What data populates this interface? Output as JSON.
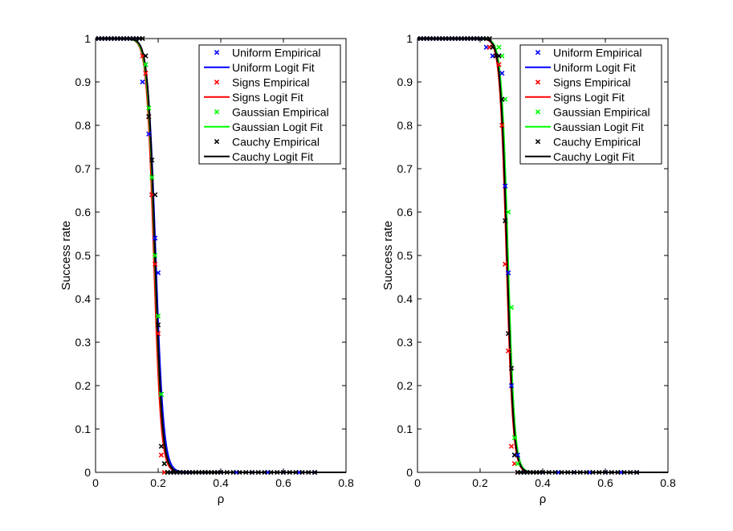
{
  "chart_data": [
    {
      "type": "line",
      "xlabel": "ρ",
      "ylabel": "Success rate",
      "xlim": [
        0,
        0.8
      ],
      "ylim": [
        0,
        1
      ],
      "xticks": [
        "0",
        "0.2",
        "0.4",
        "0.6",
        "0.8"
      ],
      "yticks": [
        "0",
        "0.1",
        "0.2",
        "0.3",
        "0.4",
        "0.5",
        "0.6",
        "0.7",
        "0.8",
        "0.9",
        "1"
      ],
      "legend_position": "top-right",
      "series": [
        {
          "name": "Uniform Empirical",
          "kind": "scatter",
          "marker": "x",
          "color": "#0000ff",
          "x": [
            0,
            0.01,
            0.02,
            0.03,
            0.04,
            0.05,
            0.06,
            0.07,
            0.08,
            0.09,
            0.1,
            0.11,
            0.12,
            0.13,
            0.14,
            0.15,
            0.16,
            0.17,
            0.18,
            0.19,
            0.2,
            0.21,
            0.22,
            0.23,
            0.24,
            0.25,
            0.26,
            0.27,
            0.28,
            0.29,
            0.3,
            0.35,
            0.4,
            0.45,
            0.5,
            0.55,
            0.6,
            0.65,
            0.7
          ],
          "y": [
            1,
            1,
            1,
            1,
            1,
            1,
            1,
            1,
            1,
            1,
            1,
            1,
            1,
            1,
            1,
            0.9,
            0.94,
            0.78,
            0.64,
            0.54,
            0.46,
            0.18,
            0.02,
            0,
            0,
            0,
            0,
            0,
            0,
            0,
            0,
            0,
            0,
            0,
            0,
            0,
            0,
            0,
            0
          ]
        },
        {
          "name": "Uniform Logit Fit",
          "kind": "line",
          "color": "#0000ff",
          "center": 0.192,
          "slope": 0.0125
        },
        {
          "name": "Signs Empirical",
          "kind": "scatter",
          "marker": "x",
          "color": "#ff0000",
          "x": [
            0.15,
            0.16,
            0.17,
            0.18,
            0.19,
            0.2,
            0.21,
            0.22
          ],
          "y": [
            0.96,
            0.92,
            0.82,
            0.64,
            0.48,
            0.32,
            0.04,
            0
          ]
        },
        {
          "name": "Signs Logit Fit",
          "kind": "line",
          "color": "#ff0000",
          "center": 0.186,
          "slope": 0.0115
        },
        {
          "name": "Gaussian Empirical",
          "kind": "scatter",
          "marker": "x",
          "color": "#00ff00",
          "x": [
            0.16,
            0.17,
            0.18,
            0.19,
            0.2,
            0.21,
            0.22,
            0.23
          ],
          "y": [
            0.94,
            0.84,
            0.68,
            0.5,
            0.36,
            0.18,
            0.02,
            0
          ]
        },
        {
          "name": "Gaussian Logit Fit",
          "kind": "line",
          "color": "#00ff00",
          "center": 0.189,
          "slope": 0.0118
        },
        {
          "name": "Cauchy Empirical",
          "kind": "scatter",
          "marker": "x",
          "color": "#000000",
          "x": [
            0,
            0.01,
            0.02,
            0.03,
            0.04,
            0.05,
            0.06,
            0.07,
            0.08,
            0.09,
            0.1,
            0.11,
            0.12,
            0.13,
            0.14,
            0.15,
            0.16,
            0.17,
            0.18,
            0.19,
            0.2,
            0.21,
            0.22,
            0.23,
            0.24,
            0.25,
            0.26,
            0.27,
            0.28,
            0.29,
            0.3,
            0.31,
            0.32,
            0.33,
            0.34,
            0.35,
            0.36,
            0.37,
            0.38,
            0.39,
            0.4,
            0.42,
            0.44,
            0.46,
            0.48,
            0.5,
            0.52,
            0.54,
            0.56,
            0.58,
            0.6,
            0.62,
            0.64,
            0.66,
            0.68,
            0.7
          ],
          "y": [
            1,
            1,
            1,
            1,
            1,
            1,
            1,
            1,
            1,
            1,
            1,
            1,
            1,
            1,
            1,
            1,
            0.96,
            0.82,
            0.72,
            0.64,
            0.34,
            0.06,
            0.02,
            0,
            0,
            0,
            0,
            0,
            0,
            0,
            0,
            0,
            0,
            0,
            0,
            0,
            0,
            0,
            0,
            0,
            0,
            0,
            0,
            0,
            0,
            0,
            0,
            0,
            0,
            0,
            0,
            0,
            0,
            0,
            0,
            0
          ]
        },
        {
          "name": "Cauchy Logit Fit",
          "kind": "line",
          "color": "#000000",
          "center": 0.19,
          "slope": 0.0115
        }
      ]
    },
    {
      "type": "line",
      "xlabel": "ρ",
      "ylabel": "Success rate",
      "xlim": [
        0,
        0.8
      ],
      "ylim": [
        0,
        1
      ],
      "xticks": [
        "0",
        "0.2",
        "0.4",
        "0.6",
        "0.8"
      ],
      "yticks": [
        "0",
        "0.1",
        "0.2",
        "0.3",
        "0.4",
        "0.5",
        "0.6",
        "0.7",
        "0.8",
        "0.9",
        "1"
      ],
      "legend_position": "top-right",
      "series": [
        {
          "name": "Uniform Empirical",
          "kind": "scatter",
          "marker": "x",
          "color": "#0000ff",
          "x": [
            0,
            0.01,
            0.02,
            0.03,
            0.04,
            0.05,
            0.06,
            0.07,
            0.08,
            0.09,
            0.1,
            0.11,
            0.12,
            0.13,
            0.14,
            0.15,
            0.16,
            0.17,
            0.18,
            0.19,
            0.2,
            0.21,
            0.22,
            0.23,
            0.24,
            0.25,
            0.26,
            0.27,
            0.28,
            0.29,
            0.3,
            0.31,
            0.32,
            0.33,
            0.34,
            0.35,
            0.4,
            0.45,
            0.5,
            0.55,
            0.6,
            0.65,
            0.7
          ],
          "y": [
            1,
            1,
            1,
            1,
            1,
            1,
            1,
            1,
            1,
            1,
            1,
            1,
            1,
            1,
            1,
            1,
            1,
            1,
            1,
            1,
            1,
            1,
            0.98,
            0.98,
            0.96,
            0.96,
            0.96,
            0.92,
            0.66,
            0.46,
            0.2,
            0.04,
            0.04,
            0,
            0,
            0,
            0,
            0,
            0,
            0,
            0,
            0,
            0
          ]
        },
        {
          "name": "Uniform Logit Fit",
          "kind": "line",
          "color": "#0000ff",
          "center": 0.288,
          "slope": 0.0105
        },
        {
          "name": "Signs Empirical",
          "kind": "scatter",
          "marker": "x",
          "color": "#ff0000",
          "x": [
            0.23,
            0.24,
            0.25,
            0.26,
            0.27,
            0.28,
            0.29,
            0.3,
            0.31,
            0.32
          ],
          "y": [
            0.98,
            0.98,
            0.96,
            0.94,
            0.8,
            0.48,
            0.28,
            0.06,
            0.02,
            0
          ]
        },
        {
          "name": "Signs Logit Fit",
          "kind": "line",
          "color": "#ff0000",
          "center": 0.284,
          "slope": 0.0105
        },
        {
          "name": "Gaussian Empirical",
          "kind": "scatter",
          "marker": "x",
          "color": "#00ff00",
          "x": [
            0.26,
            0.27,
            0.28,
            0.29,
            0.3,
            0.31,
            0.32,
            0.33
          ],
          "y": [
            0.98,
            0.96,
            0.86,
            0.6,
            0.38,
            0.08,
            0.02,
            0
          ]
        },
        {
          "name": "Gaussian Logit Fit",
          "kind": "line",
          "color": "#00ff00",
          "center": 0.289,
          "slope": 0.0105
        },
        {
          "name": "Cauchy Empirical",
          "kind": "scatter",
          "marker": "x",
          "color": "#000000",
          "x": [
            0,
            0.01,
            0.02,
            0.03,
            0.04,
            0.05,
            0.06,
            0.07,
            0.08,
            0.09,
            0.1,
            0.11,
            0.12,
            0.13,
            0.14,
            0.15,
            0.16,
            0.17,
            0.18,
            0.19,
            0.2,
            0.21,
            0.22,
            0.23,
            0.24,
            0.25,
            0.26,
            0.27,
            0.28,
            0.29,
            0.3,
            0.31,
            0.32,
            0.33,
            0.34,
            0.35,
            0.36,
            0.37,
            0.38,
            0.39,
            0.4,
            0.42,
            0.44,
            0.46,
            0.48,
            0.5,
            0.52,
            0.54,
            0.56,
            0.58,
            0.6,
            0.62,
            0.64,
            0.66,
            0.68,
            0.7
          ],
          "y": [
            1,
            1,
            1,
            1,
            1,
            1,
            1,
            1,
            1,
            1,
            1,
            1,
            1,
            1,
            1,
            1,
            1,
            1,
            1,
            1,
            1,
            1,
            1,
            1,
            0.98,
            0.96,
            0.96,
            0.86,
            0.58,
            0.32,
            0.24,
            0.04,
            0,
            0,
            0,
            0,
            0,
            0,
            0,
            0,
            0,
            0,
            0,
            0,
            0,
            0,
            0,
            0,
            0,
            0,
            0,
            0,
            0,
            0,
            0,
            0
          ]
        },
        {
          "name": "Cauchy Logit Fit",
          "kind": "line",
          "color": "#000000",
          "center": 0.286,
          "slope": 0.0105
        }
      ]
    }
  ]
}
